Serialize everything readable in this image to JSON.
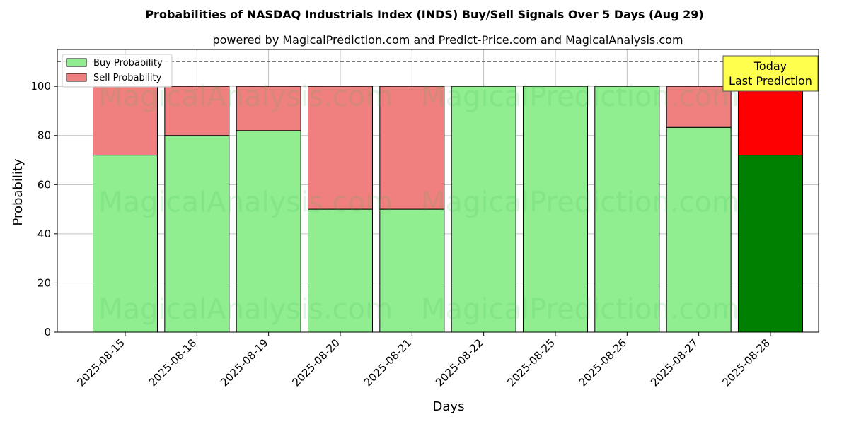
{
  "chart_data": {
    "type": "bar",
    "stacked": true,
    "title": "Probabilities of NASDAQ Industrials Index (INDS) Buy/Sell Signals Over 5 Days (Aug 29)",
    "subtitle": "powered by MagicalPrediction.com and Predict-Price.com and MagicalAnalysis.com",
    "xlabel": "Days",
    "ylabel": "Probability",
    "ylim": [
      0,
      115
    ],
    "yticks": [
      0,
      20,
      40,
      60,
      80,
      100
    ],
    "grid": true,
    "legend_position": "top-left",
    "reference_line": 110,
    "categories": [
      "2025-08-15",
      "2025-08-18",
      "2025-08-19",
      "2025-08-20",
      "2025-08-21",
      "2025-08-22",
      "2025-08-25",
      "2025-08-26",
      "2025-08-27",
      "2025-08-28"
    ],
    "series": [
      {
        "name": "Buy Probability",
        "values": [
          72,
          80,
          82,
          50,
          50,
          100,
          100,
          100,
          83.3,
          72
        ],
        "color": "#90ee90",
        "highlight_color": "#008000"
      },
      {
        "name": "Sell Probability",
        "values": [
          28,
          20,
          18,
          50,
          50,
          0,
          0,
          0,
          16.7,
          28
        ],
        "color": "#f08080",
        "highlight_color": "#ff0000"
      }
    ],
    "highlight_index": 9,
    "annotation": {
      "line1": "Today",
      "line2": "Last Prediction",
      "background": "#ffff4d"
    },
    "watermarks": [
      "MagicalAnalysis.com",
      "MagicalPrediction.com"
    ]
  }
}
